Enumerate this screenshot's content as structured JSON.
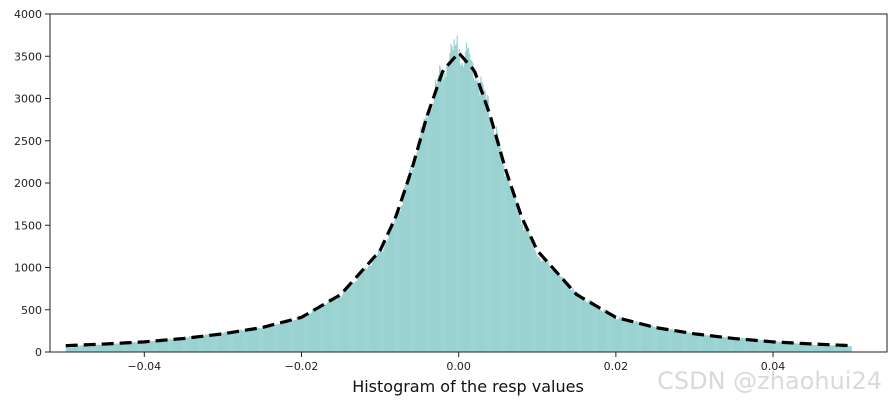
{
  "chart_data": {
    "type": "bar",
    "xlabel": "Histogram of the resp values",
    "ylabel": "",
    "xlim": [
      -0.052,
      0.0545
    ],
    "ylim": [
      0,
      4000
    ],
    "x_ticks": [
      -0.04,
      -0.02,
      0.0,
      0.02,
      0.04
    ],
    "x_tick_labels": [
      "−0.04",
      "−0.02",
      "0.00",
      "0.02",
      "0.04"
    ],
    "y_ticks": [
      0,
      500,
      1000,
      1500,
      2000,
      2500,
      3000,
      3500,
      4000
    ],
    "y_tick_labels": [
      "0",
      "500",
      "1000",
      "1500",
      "2000",
      "2500",
      "3000",
      "3500",
      "4000"
    ],
    "grid": false,
    "series": [
      {
        "kind": "histogram",
        "color": "#9ad2d1",
        "x": [
          -0.05,
          -0.045,
          -0.04,
          -0.035,
          -0.03,
          -0.025,
          -0.02,
          -0.015,
          -0.01,
          -0.008,
          -0.006,
          -0.004,
          -0.002,
          0.0,
          0.002,
          0.004,
          0.006,
          0.008,
          0.01,
          0.015,
          0.02,
          0.025,
          0.03,
          0.035,
          0.04,
          0.045,
          0.05
        ],
        "values": [
          70,
          90,
          130,
          175,
          230,
          300,
          420,
          700,
          1200,
          1600,
          2200,
          2900,
          3450,
          3700,
          3450,
          2900,
          2200,
          1600,
          1200,
          700,
          420,
          300,
          230,
          175,
          130,
          90,
          70
        ]
      },
      {
        "kind": "fit-curve",
        "color": "#000000",
        "line_style": "dashed",
        "x": [
          -0.05,
          -0.045,
          -0.04,
          -0.035,
          -0.03,
          -0.025,
          -0.02,
          -0.015,
          -0.01,
          -0.008,
          -0.006,
          -0.004,
          -0.002,
          0.0,
          0.002,
          0.004,
          0.006,
          0.008,
          0.01,
          0.015,
          0.02,
          0.025,
          0.03,
          0.035,
          0.04,
          0.045,
          0.05
        ],
        "values": [
          75,
          95,
          120,
          160,
          215,
          290,
          410,
          680,
          1200,
          1600,
          2150,
          2800,
          3330,
          3540,
          3330,
          2800,
          2150,
          1600,
          1200,
          680,
          410,
          290,
          215,
          160,
          120,
          95,
          75
        ]
      }
    ]
  },
  "watermark": {
    "text": "CSDN @zhaohui24"
  }
}
